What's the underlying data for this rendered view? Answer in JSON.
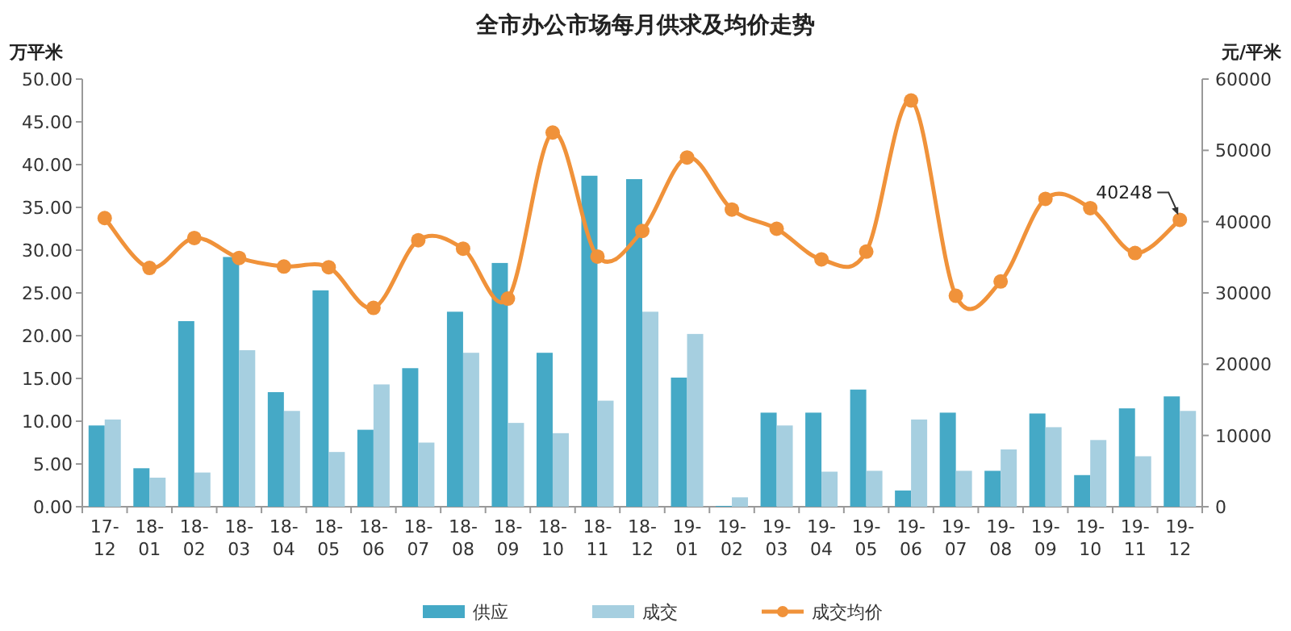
{
  "chart_data": {
    "type": "bar",
    "title": "全市办公市场每月供求及均价走势",
    "ylabel": "万平米",
    "y2label": "元/平米",
    "categories": [
      "17-12",
      "18-01",
      "18-02",
      "18-03",
      "18-04",
      "18-05",
      "18-06",
      "18-07",
      "18-08",
      "18-09",
      "18-10",
      "18-11",
      "18-12",
      "19-01",
      "19-02",
      "19-03",
      "19-04",
      "19-05",
      "19-06",
      "19-07",
      "19-08",
      "19-09",
      "19-10",
      "19-11",
      "19-12"
    ],
    "series": [
      {
        "name": "供应",
        "color": "#45a9c6",
        "values": [
          9.5,
          4.5,
          21.7,
          29.2,
          13.4,
          25.3,
          9.0,
          16.2,
          22.8,
          28.5,
          18.0,
          38.7,
          38.3,
          15.1,
          0.1,
          11.0,
          11.0,
          13.7,
          1.9,
          11.0,
          4.2,
          10.9,
          3.7,
          11.5,
          12.9
        ]
      },
      {
        "name": "成交",
        "color": "#a6cfe0",
        "values": [
          10.2,
          3.4,
          4.0,
          18.3,
          11.2,
          6.4,
          14.3,
          7.5,
          18.0,
          9.8,
          8.6,
          12.4,
          22.8,
          20.2,
          1.1,
          9.5,
          4.1,
          4.2,
          10.2,
          4.2,
          6.7,
          9.3,
          7.8,
          5.9,
          11.2
        ]
      },
      {
        "name": "成交均价",
        "color": "#f0923a",
        "type": "line",
        "axis": "y2",
        "marker": "circle",
        "values": [
          40500,
          33500,
          37700,
          34900,
          33700,
          33600,
          27900,
          37400,
          36200,
          29200,
          52500,
          35100,
          38700,
          49000,
          41700,
          39000,
          34700,
          35800,
          57000,
          29600,
          31600,
          43200,
          41900,
          35600,
          40248
        ]
      }
    ],
    "ylim": [
      0,
      50
    ],
    "yticks": [
      {
        "value": 0,
        "label": "0.00"
      },
      {
        "value": 5,
        "label": "5.00"
      },
      {
        "value": 10,
        "label": "10.00"
      },
      {
        "value": 15,
        "label": "15.00"
      },
      {
        "value": 20,
        "label": "20.00"
      },
      {
        "value": 25,
        "label": "25.00"
      },
      {
        "value": 30,
        "label": "30.00"
      },
      {
        "value": 35,
        "label": "35.00"
      },
      {
        "value": 40,
        "label": "40.00"
      },
      {
        "value": 45,
        "label": "45.00"
      },
      {
        "value": 50,
        "label": "50.00"
      }
    ],
    "y2lim": [
      0,
      60000
    ],
    "y2ticks": [
      0,
      10000,
      20000,
      30000,
      40000,
      50000,
      60000
    ],
    "annotations": [
      "40248"
    ],
    "legend": "bottom",
    "grid": false
  }
}
